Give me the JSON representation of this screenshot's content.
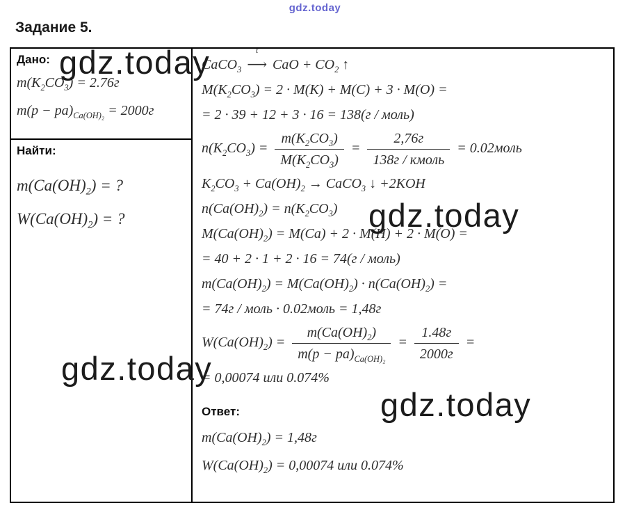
{
  "page": {
    "watermark": "gdz.today",
    "title": "Задание 5."
  },
  "given": {
    "label": "Дано:",
    "lines": [
      "m(K<sub>2</sub>CO<sub>3</sub>) = 2.76г",
      "m(р − ра)<sub>Ca(OH)₂</sub> = 2000г"
    ]
  },
  "find": {
    "label": "Найти:",
    "lines": [
      "m(Ca(OH)<sub>2</sub>) = ?",
      "W(Ca(OH)<sub>2</sub>) = ?"
    ]
  },
  "solution": {
    "lines": [
      "CaCO<sub>3</sub> <span class='arrt'><span class='arrlbl'>t</span>⟶</span> CaO + CO<sub>2</sub> ↑",
      "M(K<sub>2</sub>CO<sub>3</sub>) = 2 · M(K) + M(C) + 3 · M(O) =",
      "= 2 · 39 + 12 + 3 · 16 = 138(г / моль)",
      "n(K<sub>2</sub>CO<sub>3</sub>) = <span class='frac'><span class='num'>m(K<sub>2</sub>CO<sub>3</sub>)</span><span class='den'>M(K<sub>2</sub>CO<sub>3</sub>)</span></span> = <span class='frac'><span class='num'>2,76г</span><span class='den'>138г / кмоль</span></span> = 0.02моль",
      "K<sub>2</sub>CO<sub>3</sub> + Ca(OH)<sub>2</sub> → CaCO<sub>3</sub> ↓ +2KOH",
      "n(Ca(OH)<sub>2</sub>) = n(K<sub>2</sub>CO<sub>3</sub>)",
      "M(Ca(OH)<sub>2</sub>) = M(Ca) + 2 · M(H) + 2 · M(O) =",
      "= 40 + 2 · 1 + 2 · 16 = 74(г / моль)",
      "m(Ca(OH)<sub>2</sub>) = M(Ca(OH)<sub>2</sub>) · n(Ca(OH)<sub>2</sub>) =",
      "= 74г / моль · 0.02моль = 1,48г",
      "W(Ca(OH)<sub>2</sub>) = <span class='frac'><span class='num'>m(Ca(OH)<sub>2</sub>)</span><span class='den'>m(р − ра)<sub>Ca(OH)₂</sub></span></span> = <span class='frac'><span class='num'>1.48г</span><span class='den'>2000г</span></span> =",
      "= 0,00074 или 0.074%"
    ]
  },
  "answer": {
    "label": "Ответ:",
    "lines": [
      "m(Ca(OH)<sub>2</sub>) = 1,48г",
      "W(Ca(OH)<sub>2</sub>) = 0,00074 или 0.074%"
    ]
  }
}
